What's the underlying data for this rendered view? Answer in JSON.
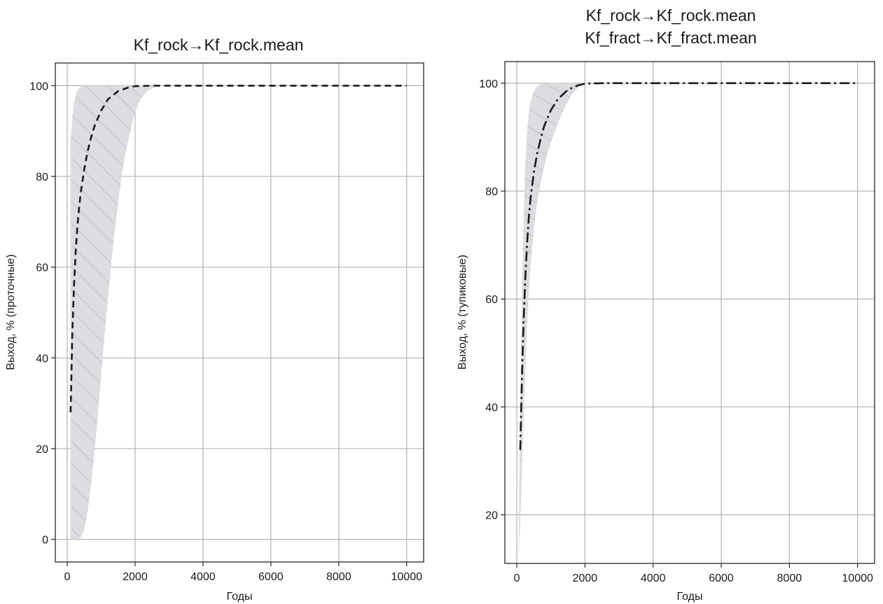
{
  "chart_data": [
    {
      "type": "line",
      "title_lines": [
        "Kf_rock→Kf_rock.mean"
      ],
      "xlabel": "Годы",
      "ylabel": "Выход, % (проточные)",
      "xlim": [
        -350,
        10500
      ],
      "ylim": [
        -5,
        105
      ],
      "xticks": [
        0,
        2000,
        4000,
        6000,
        8000,
        10000
      ],
      "yticks": [
        0,
        20,
        40,
        60,
        80,
        100
      ],
      "grid": true,
      "line_style": "dashed",
      "line_color": "#1a1a1a",
      "band_color": "#dcdde0",
      "hatch_color": "#a9abb0",
      "mean": {
        "x": [
          100,
          150,
          200,
          250,
          300,
          350,
          400,
          500,
          600,
          700,
          800,
          1000,
          1200,
          1500,
          1800,
          2000,
          2500,
          3000,
          4000,
          6000,
          8000,
          10000
        ],
        "y": [
          28,
          45,
          56,
          63.5,
          69,
          73,
          76.5,
          81.5,
          85.5,
          88.5,
          91,
          94.5,
          97,
          98.8,
          99.6,
          99.9,
          100,
          100,
          100,
          100,
          100,
          100
        ]
      },
      "band_upper": {
        "x": [
          100,
          150,
          200,
          250,
          300,
          400,
          500,
          700,
          900,
          1100,
          1300,
          1500,
          1700,
          1800,
          1900,
          2000,
          2200,
          2400,
          2600,
          2800,
          10000
        ],
        "y": [
          88,
          93,
          96,
          98,
          99,
          99.8,
          100,
          100,
          100,
          100,
          100,
          100,
          100,
          100,
          100,
          100,
          100,
          100,
          100,
          100,
          100
        ]
      },
      "band_lower": {
        "x": [
          100,
          200,
          300,
          400,
          500,
          600,
          700,
          800,
          900,
          1000,
          1100,
          1200,
          1300,
          1400,
          1500,
          1600,
          1700,
          1800,
          1900,
          2000,
          2100,
          2200,
          2400,
          2600,
          2800
        ],
        "y": [
          0,
          0,
          0,
          0.5,
          2,
          6,
          12,
          19,
          27,
          36,
          45,
          53,
          61,
          68,
          74,
          80,
          84.5,
          88,
          91.5,
          94,
          96,
          97.5,
          99,
          99.8,
          100
        ]
      }
    },
    {
      "type": "line",
      "title_lines": [
        "Kf_rock→Kf_rock.mean",
        "Kf_fract→Kf_fract.mean"
      ],
      "xlabel": "Годы",
      "ylabel": "Выход, % (тупиковые)",
      "xlim": [
        -350,
        10500
      ],
      "ylim": [
        11,
        104
      ],
      "xticks": [
        0,
        2000,
        4000,
        6000,
        8000,
        10000
      ],
      "yticks": [
        20,
        40,
        60,
        80,
        100
      ],
      "grid": true,
      "line_style": "dashdot",
      "line_color": "#1a1a1a",
      "band_color": "#dcdde0",
      "hatch_color": "#a9abb0",
      "mean": {
        "x": [
          100,
          150,
          200,
          250,
          300,
          350,
          400,
          500,
          600,
          700,
          800,
          1000,
          1200,
          1500,
          1800,
          2000,
          2500,
          3000,
          4000,
          6000,
          8000,
          10000
        ],
        "y": [
          32,
          45,
          56,
          64,
          70,
          75,
          78.5,
          83.5,
          87,
          89.7,
          92,
          95,
          97,
          98.8,
          99.6,
          99.9,
          100,
          100,
          100,
          100,
          100,
          100
        ]
      },
      "band_upper": {
        "x": [
          100,
          150,
          200,
          250,
          300,
          350,
          400,
          500,
          600,
          700,
          800,
          1000,
          10000
        ],
        "y": [
          40,
          60,
          75,
          85,
          91,
          94.5,
          96.5,
          98.5,
          99.4,
          99.8,
          100,
          100,
          100
        ]
      },
      "band_lower": {
        "x": [
          50,
          100,
          150,
          200,
          300,
          400,
          500,
          600,
          700,
          800,
          900,
          1000,
          1200,
          1400,
          1600,
          1800,
          2000,
          2200
        ],
        "y": [
          12,
          18,
          28,
          38,
          55,
          66,
          73,
          78,
          81.5,
          84.5,
          87,
          89,
          92.5,
          95.5,
          97.8,
          99.2,
          99.9,
          100
        ]
      }
    }
  ]
}
